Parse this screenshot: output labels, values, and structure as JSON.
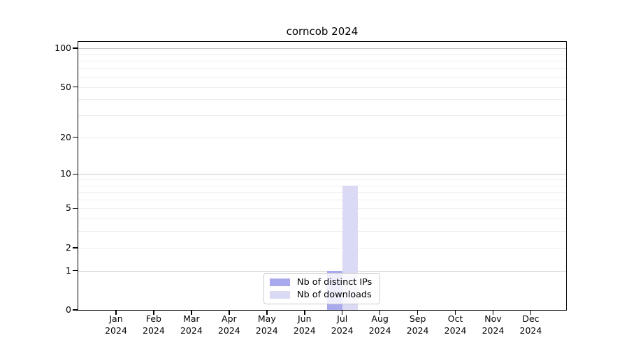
{
  "chart_data": {
    "type": "bar",
    "title": "corncob 2024",
    "categories": [
      "Jan",
      "Feb",
      "Mar",
      "Apr",
      "May",
      "Jun",
      "Jul",
      "Aug",
      "Sep",
      "Oct",
      "Nov",
      "Dec"
    ],
    "year": "2024",
    "series": [
      {
        "name": "Nb of distinct IPs",
        "color": "#a9a9ee",
        "values": [
          0,
          0,
          0,
          0,
          0,
          0,
          1,
          0,
          0,
          0,
          0,
          0
        ]
      },
      {
        "name": "Nb of downloads",
        "color": "#dadaf5",
        "values": [
          0,
          0,
          0,
          0,
          0,
          0,
          8,
          0,
          0,
          0,
          0,
          0
        ]
      }
    ],
    "y_ticks": [
      0,
      1,
      2,
      5,
      10,
      20,
      50,
      100
    ],
    "gridlines": {
      "major": [
        1,
        10,
        100
      ],
      "minor": [
        2,
        3,
        4,
        5,
        6,
        7,
        8,
        9,
        20,
        30,
        40,
        50,
        60,
        70,
        80,
        90
      ]
    },
    "scale": "log10(value+1)",
    "ylim": [
      0,
      113
    ],
    "legend_position": "bottom-center",
    "colors": {
      "grid_major": "#c9c9c9",
      "grid_minor": "#eeeeee",
      "axis": "#000000",
      "legend_border": "#cccccc"
    }
  }
}
